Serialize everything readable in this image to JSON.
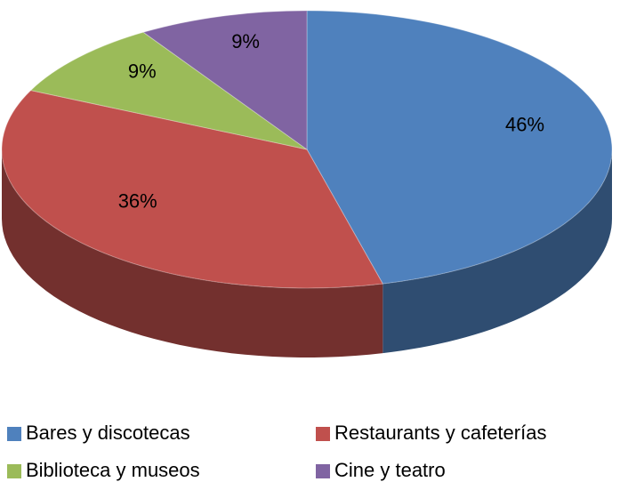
{
  "chart_data": {
    "type": "pie3d",
    "categories": [
      "Bares y discotecas",
      "Restaurants y cafeterías",
      "Biblioteca y museos",
      "Cine y teatro"
    ],
    "values": [
      46,
      36,
      9,
      9
    ],
    "value_labels": [
      "46%",
      "36%",
      "9%",
      "9%"
    ],
    "colors": [
      "#4f81bd",
      "#c0504d",
      "#9bbb59",
      "#8064a2"
    ],
    "legend": "bottom"
  }
}
